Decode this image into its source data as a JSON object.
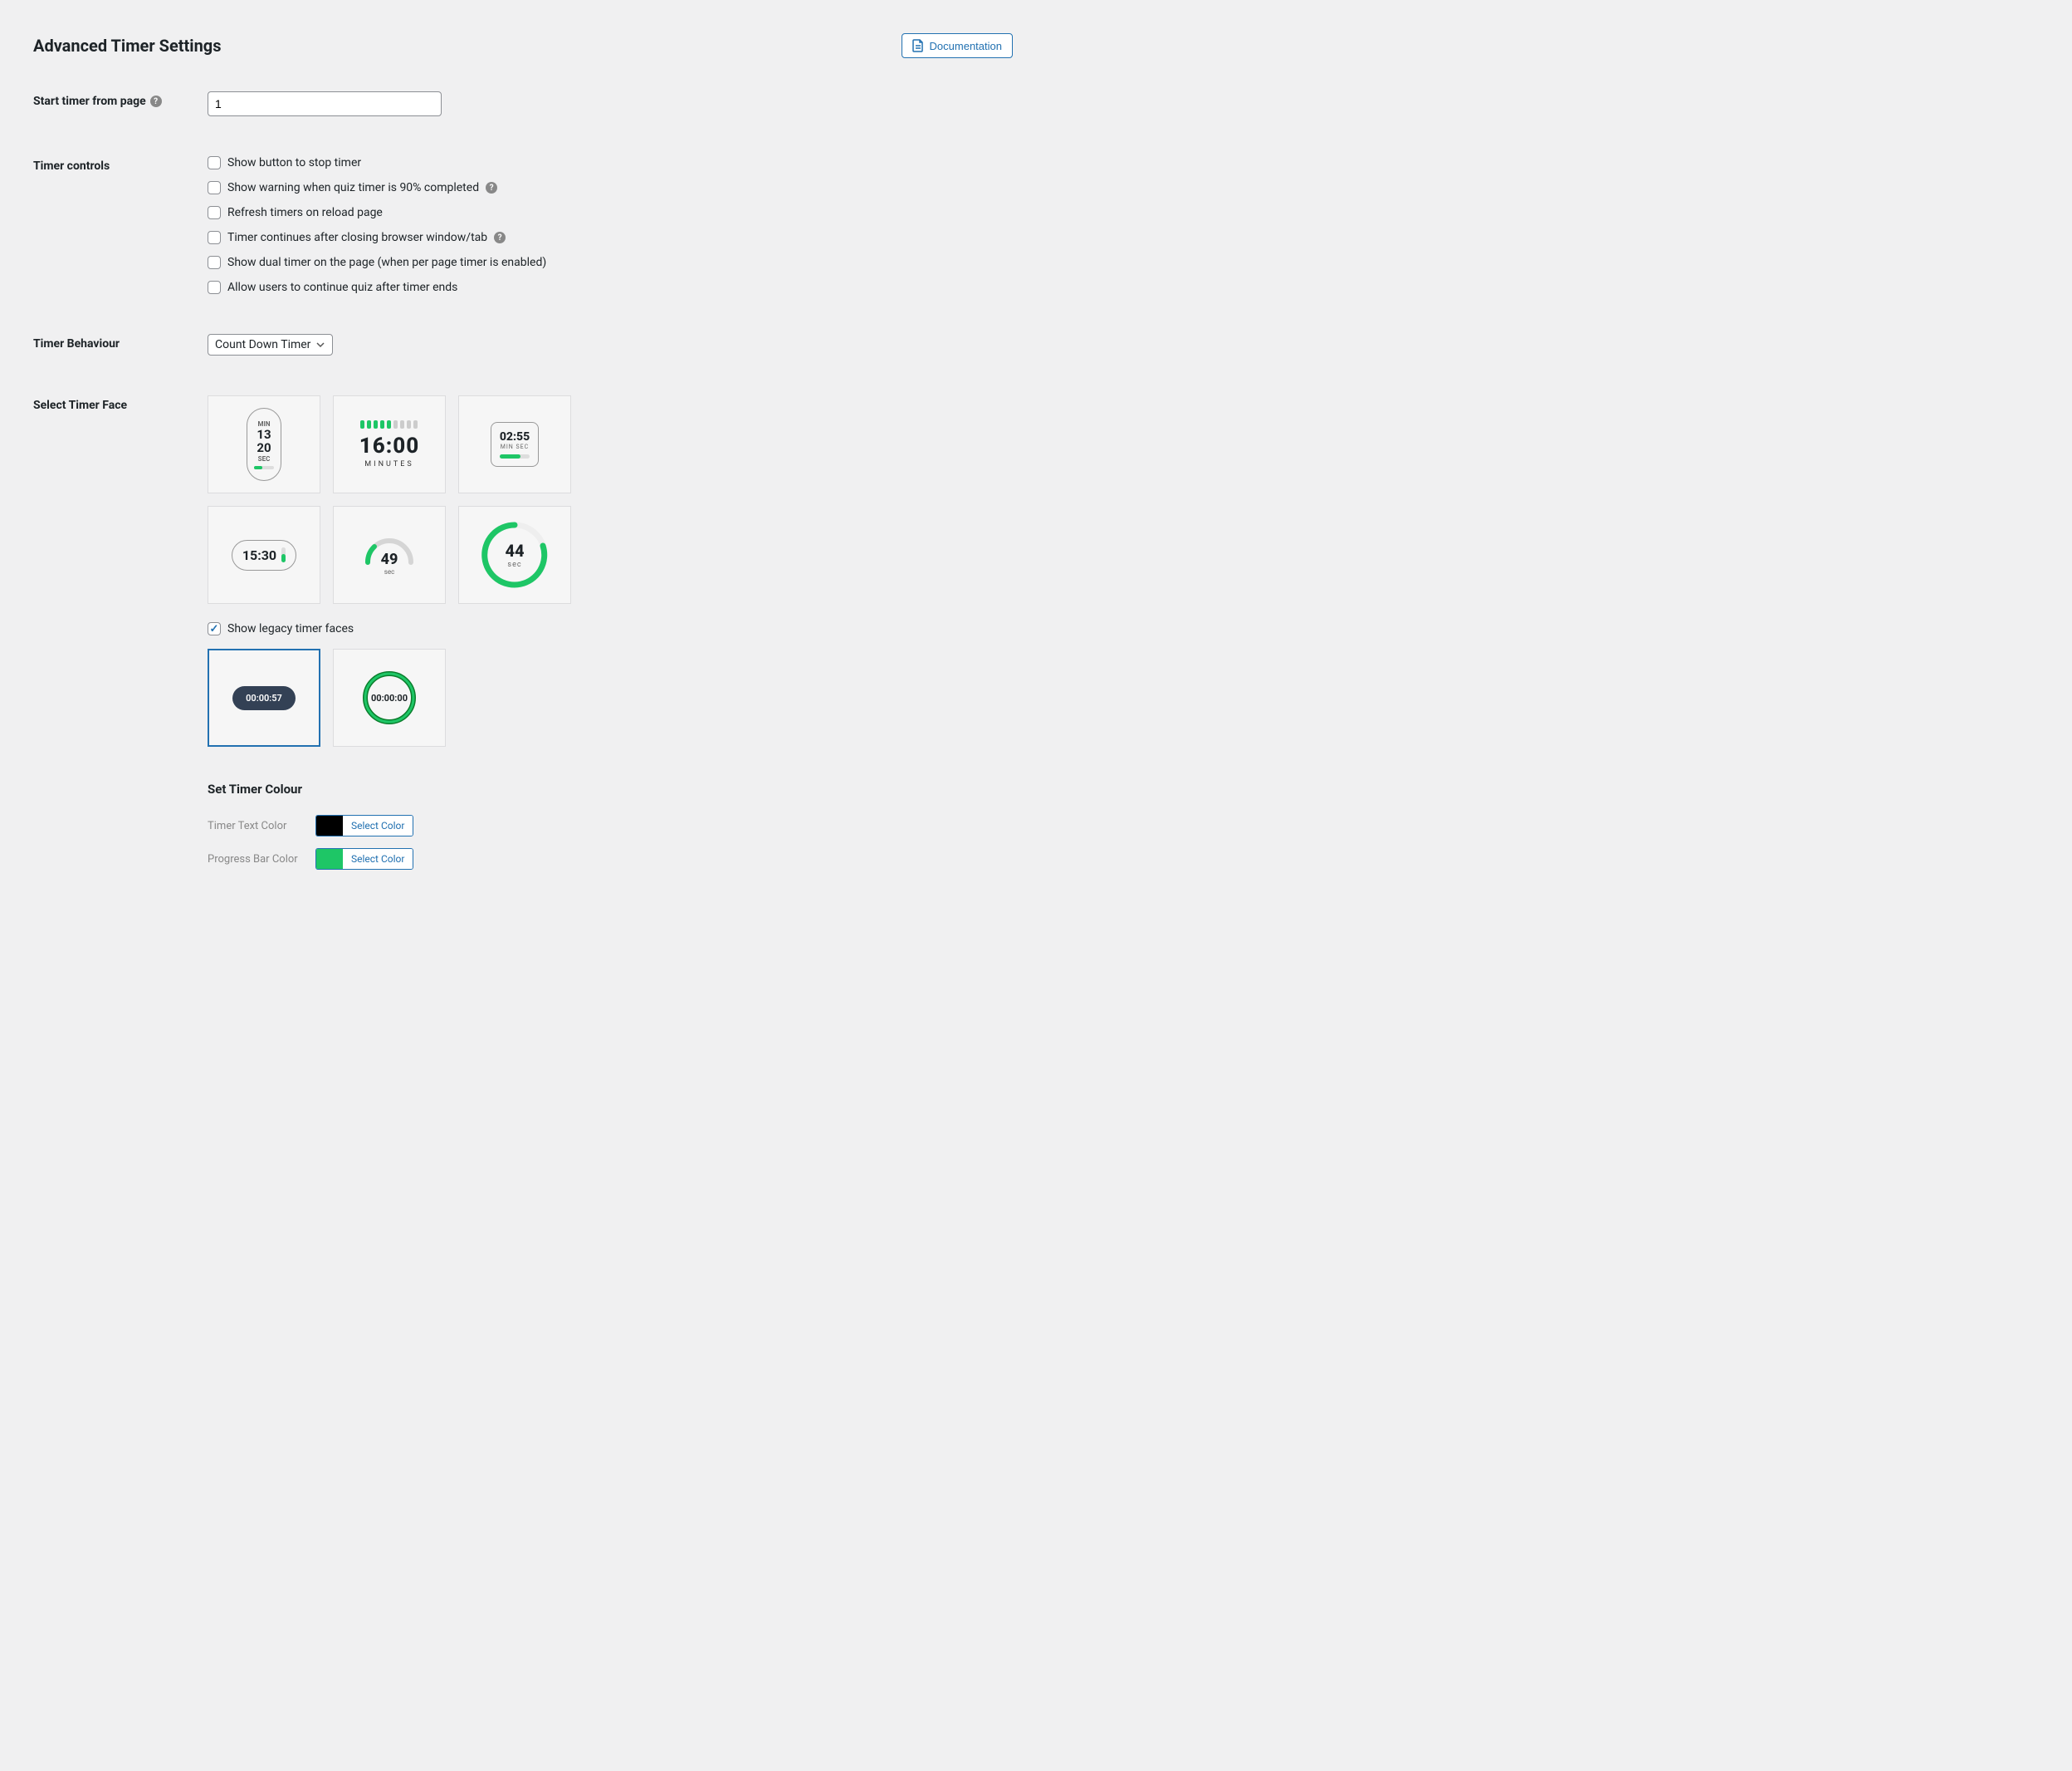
{
  "colors": {
    "background": "#f0f0f1",
    "border": "#dcdcde",
    "accent": "#2271b1",
    "green": "#1ec666",
    "darkPill": "#334155",
    "greenDark": "#0a7d2c",
    "grayText": "#888888",
    "inputBorder": "#8c8f94"
  },
  "header": {
    "title": "Advanced Timer Settings",
    "docBtn": "Documentation"
  },
  "startFromPage": {
    "label": "Start timer from page",
    "value": "1",
    "hasHelp": true
  },
  "timerControls": {
    "label": "Timer controls",
    "items": [
      {
        "label": "Show button to stop timer",
        "checked": false,
        "hasHelp": false
      },
      {
        "label": "Show warning when quiz timer is 90% completed",
        "checked": false,
        "hasHelp": true
      },
      {
        "label": "Refresh timers on reload page",
        "checked": false,
        "hasHelp": false
      },
      {
        "label": "Timer continues after closing browser window/tab",
        "checked": false,
        "hasHelp": true
      },
      {
        "label": "Show dual timer on the page (when per page timer is enabled)",
        "checked": false,
        "hasHelp": false
      },
      {
        "label": "Allow users to continue quiz after timer ends",
        "checked": false,
        "hasHelp": false
      }
    ]
  },
  "timerBehaviour": {
    "label": "Timer Behaviour",
    "value": "Count Down Timer"
  },
  "selectFace": {
    "label": "Select Timer Face",
    "legacyCheckbox": {
      "label": "Show legacy timer faces",
      "checked": true
    },
    "faces": {
      "f1": {
        "min": "MIN",
        "n1": "13",
        "n2": "20",
        "sec": "SEC"
      },
      "f2": {
        "time": "16:00",
        "sub": "MINUTES",
        "barsOn": 5,
        "barsTotal": 9
      },
      "f3": {
        "time": "02:55",
        "sub": "MIN  SEC"
      },
      "f4": {
        "time": "15:30"
      },
      "f5": {
        "num": "49",
        "sub": "sec"
      },
      "f6": {
        "num": "44",
        "sub": "sec"
      },
      "leg1": {
        "time": "00:00:57",
        "selected": true
      },
      "leg2": {
        "time": "00:00:00"
      }
    }
  },
  "setColour": {
    "heading": "Set Timer Colour",
    "rows": [
      {
        "label": "Timer Text Color",
        "swatch": "#000000",
        "btn": "Select Color"
      },
      {
        "label": "Progress Bar Color",
        "swatch": "#1ec666",
        "btn": "Select Color"
      }
    ]
  }
}
